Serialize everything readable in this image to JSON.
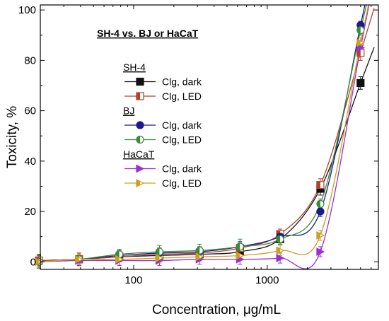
{
  "chart_data": {
    "type": "scatter",
    "title": "SH-4 vs. BJ or HaCaT",
    "xlabel": "Concentration, μg/mL",
    "ylabel": "Toxicity, %",
    "x_scale": "log",
    "xlim": [
      20,
      6800
    ],
    "ylim": [
      -3,
      102
    ],
    "x_ticks": [
      {
        "value": 100,
        "label": "100"
      },
      {
        "value": 1000,
        "label": "1000"
      }
    ],
    "y_ticks": [
      0,
      20,
      40,
      60,
      80,
      100
    ],
    "legend_position": "upper-left",
    "legend_groups": [
      {
        "label": "SH-4",
        "series": [
          0,
          1
        ]
      },
      {
        "label": "BJ",
        "series": [
          2,
          3
        ]
      },
      {
        "label": "HaCaT",
        "series": [
          4,
          5
        ]
      }
    ],
    "x": [
      19.5,
      39,
      78,
      156,
      312,
      625,
      1250,
      2500,
      5000
    ],
    "series": [
      {
        "name": "Clg, dark",
        "color": "#111111",
        "marker": "square",
        "fill": "full",
        "values": [
          0.5,
          1.0,
          2.0,
          2.5,
          3.0,
          4.0,
          9.0,
          29.0,
          71.0
        ],
        "errors": [
          2.5,
          2.5,
          2.0,
          2.0,
          2.0,
          2.0,
          2.0,
          2.5,
          2.5
        ]
      },
      {
        "name": "Clg, LED",
        "color": "#b2402a",
        "marker": "square",
        "fill": "half",
        "values": [
          0.5,
          1.0,
          2.0,
          3.0,
          3.5,
          5.5,
          11.0,
          30.5,
          83.0
        ],
        "errors": [
          2.5,
          2.5,
          2.0,
          2.0,
          2.0,
          2.0,
          2.0,
          2.5,
          3.0
        ]
      },
      {
        "name": "Clg, dark",
        "color": "#1a1a8e",
        "marker": "circle",
        "fill": "full",
        "values": [
          0.0,
          1.0,
          2.5,
          3.5,
          4.0,
          6.0,
          10.0,
          20.0,
          94.0
        ],
        "errors": [
          2.5,
          2.0,
          2.0,
          2.0,
          2.0,
          2.0,
          2.0,
          2.0,
          1.5
        ]
      },
      {
        "name": "Clg, LED",
        "color": "#3a8a3a",
        "marker": "circle",
        "fill": "half",
        "values": [
          0.0,
          1.0,
          3.0,
          4.0,
          4.5,
          6.0,
          9.0,
          23.0,
          92.0
        ],
        "errors": [
          2.5,
          2.0,
          2.0,
          2.5,
          2.5,
          3.0,
          2.0,
          2.0,
          2.0
        ]
      },
      {
        "name": "Clg, dark",
        "color": "#9b30d0",
        "marker": "triangle-right",
        "fill": "full",
        "values": [
          0.0,
          0.5,
          0.5,
          0.5,
          1.0,
          1.0,
          1.5,
          4.0,
          85.0
        ],
        "errors": [
          2.0,
          2.0,
          2.0,
          2.0,
          2.0,
          2.0,
          2.0,
          2.0,
          2.0
        ]
      },
      {
        "name": "Clg, LED",
        "color": "#c9a020",
        "marker": "triangle-right",
        "fill": "half",
        "values": [
          0.0,
          1.0,
          1.0,
          1.5,
          2.0,
          2.5,
          4.5,
          10.5,
          87.0
        ],
        "errors": [
          2.0,
          2.0,
          2.0,
          2.0,
          2.0,
          2.0,
          2.0,
          2.0,
          2.0
        ]
      }
    ]
  }
}
